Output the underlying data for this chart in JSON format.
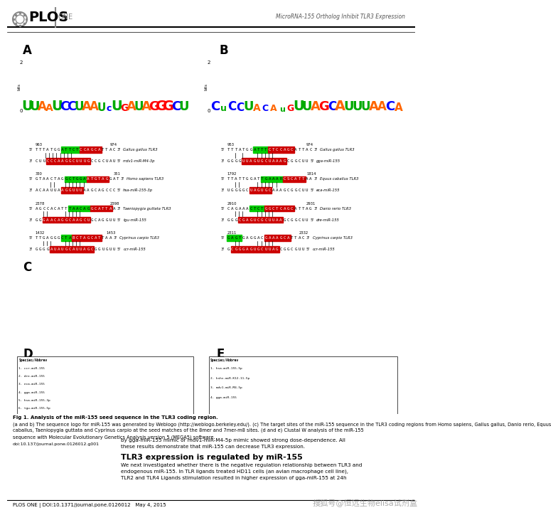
{
  "header_right": "MicroRNA-155 Ortholog Inhibit TLR3 Expression",
  "footer_text": "PLOS ONE | DOI:10.1371/journal.pone.0126012   May 4, 2015",
  "watermark_text": "搜狐号@恒远生物elisa试剂盒",
  "doi_text": "doi:10.137/journal.pone.0126012.g001",
  "body_text_1a": "by gga-miR-155 mimic or mdv1-miR-M4-5p mimic showed strong dose-dependence. All",
  "body_text_1b": "these results demonstrate that miR-155 can decrease TLR3 expression.",
  "section_title": "TLR3 expression is regulated by miR-155",
  "body_text_2a": "We next investigated whether there is the negative regulation relationship between TLR3 and",
  "body_text_2b": "endogenous miR-155. In TLR ligands treated HD11 cells (an avian macrophage cell line),",
  "body_text_2c": "TLR2 and TLR4 Ligands stimulation resulted in higher expression of gga-miR-155 at 24h",
  "bg_color": "#ffffff",
  "caption_bold": "Fig 1. Analysis of the miR-155 seed sequence in the TLR3 coding region.",
  "caption_line1": "(a and b) The sequence logo for miR-155 was generated by Weblogo (http://weblogo.berkeley.edu/). (c) The target sites of the miR-155 sequence in the TLR3 coding regions from Homo sapiens, Gallus gallus, Danio rerio, Equus",
  "caption_line2": "caballus, Taeniopygia guttata and Cyprinus carpio at the seed matches of the 8mer and 7mer-m8 sites. (d and e) Clustal W analysis of the miR-155",
  "caption_line3": "sequence with Molecular Evolutionary Genetics Analysis version 5 (MEGA5) software."
}
